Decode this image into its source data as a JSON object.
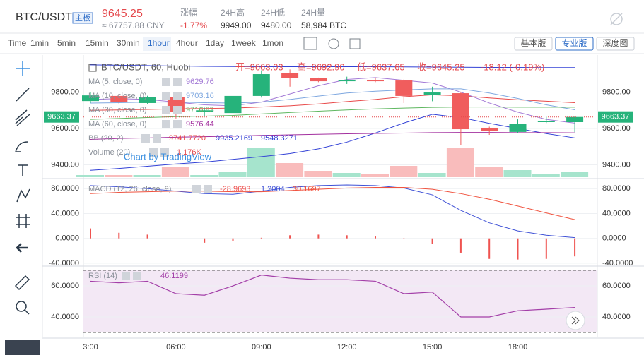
{
  "header": {
    "pair": "BTC/USDT",
    "badge": "主板",
    "price": "9645.25",
    "cny": "≈ 67757.88 CNY",
    "stats": [
      {
        "label": "涨幅",
        "value": "-1.77%"
      },
      {
        "label": "24H高",
        "value": "9949.00"
      },
      {
        "label": "24H低",
        "value": "9480.00"
      },
      {
        "label": "24H量",
        "value": "58,984 BTC"
      }
    ]
  },
  "toolbar": {
    "intervals": [
      "Time",
      "1min",
      "5min",
      "15min",
      "30min",
      "1hour",
      "4hour",
      "1day",
      "1week",
      "1mon"
    ],
    "versions": [
      "基本版",
      "专业版",
      "深度图"
    ]
  },
  "watermark": "Chart by TradingView",
  "chart_data": [
    {
      "type": "candlestick",
      "title": "BTC/USDT, 60, Huobi",
      "ohlc_legend": [
        "开=9663.03",
        "高=9692.90",
        "低=9637.65",
        "收=9645.25",
        "-18.12 (-0.19%)"
      ],
      "categories": [
        "3:00",
        null,
        null,
        "06:00",
        null,
        null,
        "09:00",
        null,
        null,
        "12:00",
        null,
        null,
        "15:00",
        null,
        null,
        "18:00",
        null,
        null
      ],
      "open": [
        9751,
        9779,
        9740,
        9771,
        9693,
        9685,
        9779,
        9903,
        9876,
        9860,
        9868,
        9864,
        9786,
        9794,
        9604,
        9581,
        9635,
        9635
      ],
      "high": [
        9800,
        9790,
        9780,
        9790,
        9715,
        9790,
        9920,
        9925,
        9880,
        9885,
        9880,
        9870,
        9830,
        9800,
        9610,
        9650,
        9665,
        9670
      ],
      "low": [
        9740,
        9735,
        9735,
        9655,
        9670,
        9680,
        9770,
        9830,
        9855,
        9845,
        9855,
        9740,
        9750,
        9510,
        9565,
        9575,
        9630,
        9580
      ],
      "close": [
        9782,
        9744,
        9771,
        9693,
        9700,
        9779,
        9899,
        9876,
        9860,
        9868,
        9860,
        9779,
        9798,
        9596,
        9585,
        9627,
        9639,
        9663.37
      ],
      "up_color": "#26b37b",
      "down_color": "#f05d5d",
      "last_price": 9663.37,
      "ylim": [
        9332,
        10004
      ],
      "yticks": [
        {
          "value": 9400,
          "label": "9400.00"
        },
        {
          "value": 9600,
          "label": "9600.00"
        },
        {
          "value": 9800,
          "label": "9800.00"
        }
      ],
      "lines": [
        {
          "name": "MA (5, close, 0)",
          "color": "#a37ad6",
          "value_label": "9629.76",
          "values": [
            9760,
            9764,
            9760,
            9745,
            9730,
            9725,
            9745,
            9790,
            9835,
            9870,
            9880,
            9865,
            9850,
            9800,
            9740,
            9690,
            9650,
            9629.76
          ]
        },
        {
          "name": "MA (10, close, 0)",
          "color": "#7fa8e0",
          "value_label": "9703.16",
          "values": [
            9740,
            9742,
            9745,
            9745,
            9742,
            9740,
            9745,
            9760,
            9778,
            9795,
            9805,
            9812,
            9818,
            9818,
            9795,
            9765,
            9730,
            9703.16
          ]
        },
        {
          "name": "MA (30, close, 0)",
          "color": "#5fb760",
          "value_label": "9716.83",
          "values": [
            9650,
            9655,
            9660,
            9665,
            9668,
            9672,
            9680,
            9688,
            9695,
            9702,
            9708,
            9712,
            9716,
            9718,
            9718,
            9717,
            9717,
            9716.83
          ]
        },
        {
          "name": "MA (60, close, 0)",
          "color": "#a3309f",
          "value_label": "9576.44",
          "values": [
            9540,
            9545,
            9548,
            9552,
            9555,
            9558,
            9562,
            9565,
            9568,
            9571,
            9573,
            9575,
            9577,
            9578,
            9578,
            9577,
            9577,
            9576.44
          ]
        }
      ],
      "bb": {
        "name": "BB (20, 2)",
        "series": [
          {
            "color": "#e84a4a",
            "value_label": "9741.7720",
            "values": [
              9700,
              9702,
              9705,
              9708,
              9710,
              9712,
              9718,
              9725,
              9735,
              9748,
              9760,
              9775,
              9785,
              9780,
              9768,
              9758,
              9750,
              9741.772
            ]
          },
          {
            "color": "#3342d6",
            "value_label": "9935.2169",
            "values": [
              9950,
              9948,
              9946,
              9944,
              9942,
              9941,
              9940,
              9940,
              9940,
              9940,
              9940,
              9939,
              9938,
              9937,
              9936,
              9936,
              9935,
              9935.2169
            ]
          },
          {
            "color": "#3342d6",
            "value_label": "9548.3271",
            "values": [
              9370,
              9380,
              9392,
              9405,
              9415,
              9430,
              9445,
              9462,
              9488,
              9525,
              9575,
              9630,
              9678,
              9660,
              9628,
              9600,
              9572,
              9548.3271
            ]
          }
        ]
      },
      "volume": {
        "name": "Volume (20)",
        "value_label": "1.176K",
        "up_color": "#a6e4cd",
        "down_color": "#f9bcbc",
        "values": [
          504,
          504,
          504,
          2352,
          504,
          1176,
          6888,
          3360,
          1512,
          1008,
          672,
          2688,
          1008,
          7056,
          2520,
          1680,
          840,
          1176
        ]
      }
    },
    {
      "type": "macd",
      "name": "MACD (12, 26, close, 9)",
      "value_labels": [
        "-28.9693",
        "1.2004",
        "30.1697"
      ],
      "histogram": {
        "color": "#ef5350",
        "values": [
          16,
          9,
          6,
          0,
          -7,
          -4,
          1,
          5,
          6,
          5,
          3,
          -1,
          -9,
          -23,
          -33,
          -34,
          -33,
          -28.9693
        ]
      },
      "macd": {
        "color": "#3f51d6",
        "values": [
          85,
          83,
          80,
          76,
          72,
          71,
          76,
          82,
          85,
          86,
          85,
          81,
          70,
          45,
          25,
          12,
          5,
          1.2004
        ]
      },
      "signal": {
        "color": "#f0523e",
        "values": [
          72,
          74,
          75,
          76,
          76,
          75,
          75,
          77,
          79,
          81,
          82,
          82,
          79,
          72,
          63,
          52,
          41,
          30.1697
        ]
      },
      "ylim": [
        -43.5,
        92.8
      ],
      "yticks": [
        {
          "value": 80,
          "label": "80.0000"
        },
        {
          "value": 40,
          "label": "40.0000"
        },
        {
          "value": 0,
          "label": "0.0000"
        },
        {
          "value": -40,
          "label": "-40.0000"
        }
      ]
    },
    {
      "type": "rsi",
      "name": "RSI (14)",
      "value_label": "46.1199",
      "color": "#a33fa8",
      "values": [
        63,
        62,
        63,
        55,
        54,
        60,
        67,
        65,
        64,
        64,
        63,
        55,
        56,
        40,
        40,
        44,
        45,
        46.1199
      ],
      "bands": [
        70,
        30
      ],
      "ylim": [
        26.8,
        72.3
      ],
      "yticks": [
        {
          "value": 60,
          "label": "60.0000"
        },
        {
          "value": 40,
          "label": "40.0000"
        }
      ]
    }
  ]
}
